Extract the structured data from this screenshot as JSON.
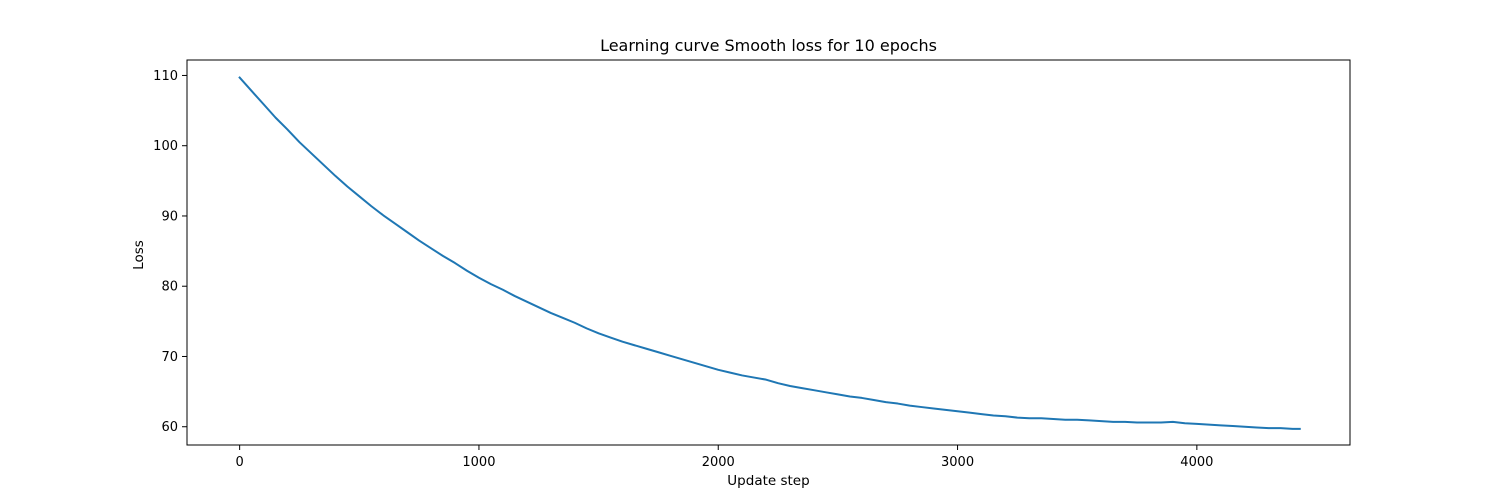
{
  "chart_data": {
    "type": "line",
    "title": "Learning curve Smooth loss for 10 epochs",
    "xlabel": "Update step",
    "ylabel": "Loss",
    "xlim": [
      -220,
      4640
    ],
    "ylim": [
      57.4,
      112.2
    ],
    "xticks": [
      0,
      1000,
      2000,
      3000,
      4000
    ],
    "yticks": [
      60,
      70,
      80,
      90,
      100,
      110
    ],
    "grid": false,
    "legend": false,
    "line_color": "#1f77b4",
    "series": [
      {
        "x": [
          0,
          50,
          100,
          150,
          200,
          250,
          300,
          350,
          400,
          450,
          500,
          550,
          600,
          650,
          700,
          750,
          800,
          850,
          900,
          950,
          1000,
          1050,
          1100,
          1150,
          1200,
          1250,
          1300,
          1350,
          1400,
          1450,
          1500,
          1550,
          1600,
          1650,
          1700,
          1750,
          1800,
          1850,
          1900,
          1950,
          2000,
          2050,
          2100,
          2150,
          2200,
          2250,
          2300,
          2350,
          2400,
          2450,
          2500,
          2550,
          2600,
          2650,
          2700,
          2750,
          2800,
          2850,
          2900,
          2950,
          3000,
          3050,
          3100,
          3150,
          3200,
          3250,
          3300,
          3350,
          3400,
          3450,
          3500,
          3550,
          3600,
          3650,
          3700,
          3750,
          3800,
          3850,
          3900,
          3950,
          4000,
          4050,
          4100,
          4150,
          4200,
          4250,
          4300,
          4350,
          4400,
          4430
        ],
        "y": [
          109.7,
          107.8,
          105.9,
          104.0,
          102.3,
          100.5,
          98.9,
          97.3,
          95.7,
          94.2,
          92.8,
          91.4,
          90.1,
          88.9,
          87.7,
          86.5,
          85.4,
          84.3,
          83.3,
          82.2,
          81.2,
          80.3,
          79.5,
          78.6,
          77.8,
          77.0,
          76.2,
          75.5,
          74.8,
          74.0,
          73.3,
          72.7,
          72.1,
          71.6,
          71.1,
          70.6,
          70.1,
          69.6,
          69.1,
          68.6,
          68.1,
          67.7,
          67.3,
          67.0,
          66.7,
          66.2,
          65.8,
          65.5,
          65.2,
          64.9,
          64.6,
          64.3,
          64.1,
          63.8,
          63.5,
          63.3,
          63.0,
          62.8,
          62.6,
          62.4,
          62.2,
          62.0,
          61.8,
          61.6,
          61.5,
          61.3,
          61.2,
          61.2,
          61.1,
          61.0,
          61.0,
          60.9,
          60.8,
          60.7,
          60.7,
          60.6,
          60.6,
          60.6,
          60.7,
          60.5,
          60.4,
          60.3,
          60.2,
          60.1,
          60.0,
          59.9,
          59.8,
          59.8,
          59.7,
          59.7
        ]
      }
    ]
  }
}
